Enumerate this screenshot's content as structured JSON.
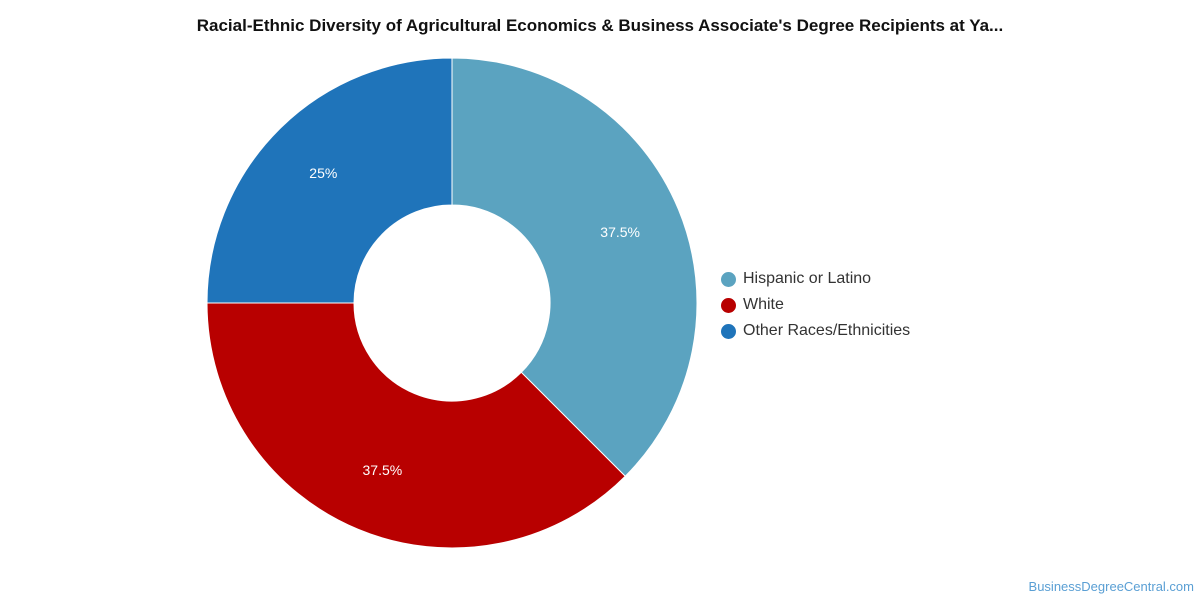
{
  "chart_data": {
    "type": "pie",
    "title": "Racial-Ethnic Diversity of Agricultural Economics & Business Associate's Degree Recipients at Ya...",
    "categories": [
      "Hispanic or Latino",
      "White",
      "Other Races/Ethnicities"
    ],
    "values": [
      37.5,
      37.5,
      25
    ],
    "labels": [
      "37.5%",
      "37.5%",
      "25%"
    ],
    "colors": [
      "#5ba3c0",
      "#b80000",
      "#1f74ba"
    ],
    "donut": true,
    "legend": "right"
  },
  "credit": "BusinessDegreeCentral.com"
}
